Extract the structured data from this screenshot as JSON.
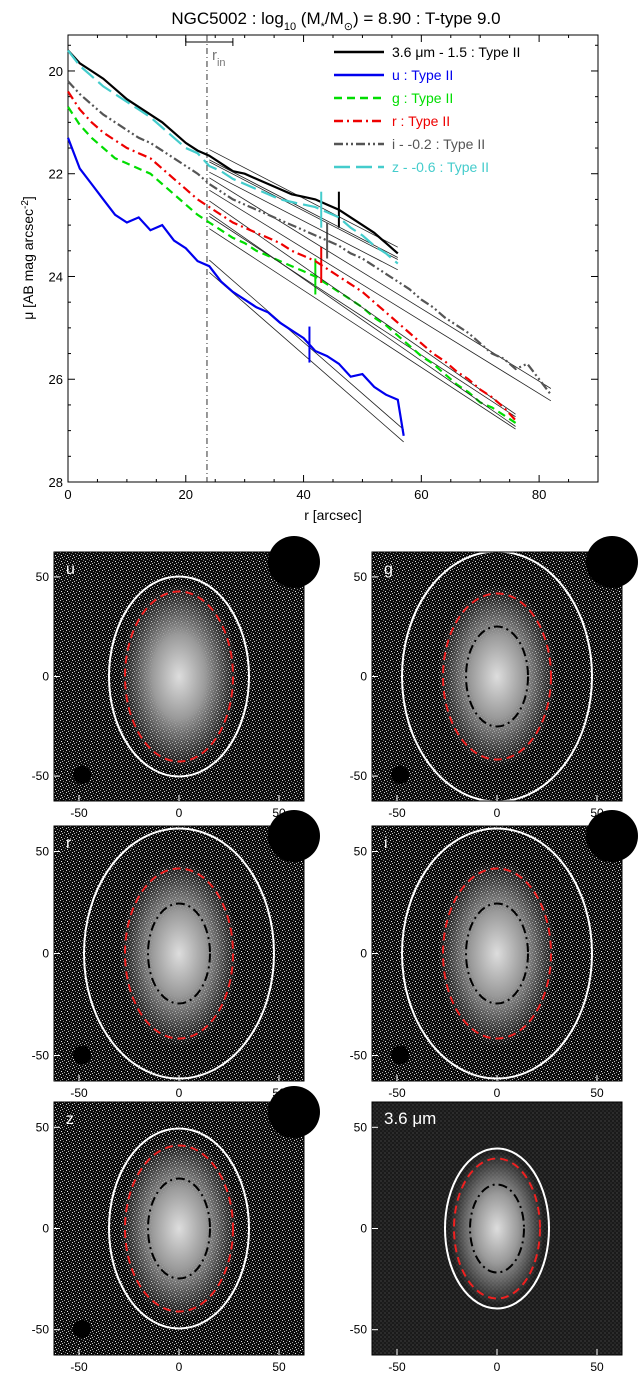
{
  "chart_data": {
    "type": "line",
    "title_parts": [
      "NGC5002 : log",
      "10",
      " (M",
      "*",
      "/M",
      "⊙",
      ") = 8.90 : T-type 9.0"
    ],
    "xlabel": "r [arcsec]",
    "ylabel_parts": [
      "μ [AB mag arcsec",
      "-2",
      "]"
    ],
    "xlim": [
      0,
      90
    ],
    "ylim": [
      28,
      19.3
    ],
    "y_inverted": true,
    "x_ticks": [
      "0",
      "20",
      "40",
      "60",
      "80"
    ],
    "y_ticks": [
      "20",
      "22",
      "24",
      "26",
      "28"
    ],
    "legend_position": "top-right",
    "r_in": {
      "label_main": "r",
      "label_sub": "in",
      "value": 23.6,
      "err": [
        20,
        28
      ]
    },
    "series": [
      {
        "name": "3.6 μm - 1.5 : Type II",
        "color": "#000000",
        "dash": "solid",
        "x": [
          0,
          2,
          4,
          6,
          8,
          10,
          12,
          14,
          16,
          18,
          20,
          22,
          24,
          26,
          28,
          30,
          32,
          34,
          36,
          38,
          40,
          42,
          44,
          46,
          48,
          50,
          52,
          54,
          56
        ],
        "y": [
          19.6,
          19.85,
          20.0,
          20.15,
          20.35,
          20.55,
          20.7,
          20.85,
          21.0,
          21.2,
          21.4,
          21.55,
          21.65,
          21.8,
          21.95,
          22.0,
          22.1,
          22.2,
          22.3,
          22.4,
          22.45,
          22.5,
          22.6,
          22.7,
          22.85,
          23.0,
          23.15,
          23.35,
          23.55
        ],
        "break_x": 46
      },
      {
        "name": "u : Type II",
        "color": "#0000ee",
        "dash": "solid",
        "x": [
          0,
          2,
          4,
          6,
          8,
          10,
          12,
          14,
          16,
          18,
          20,
          22,
          24,
          26,
          28,
          30,
          32,
          34,
          36,
          38,
          40,
          42,
          44,
          46,
          48,
          50,
          52,
          54,
          56,
          57
        ],
        "y": [
          21.3,
          21.9,
          22.2,
          22.5,
          22.8,
          22.95,
          22.85,
          23.1,
          23.0,
          23.3,
          23.45,
          23.7,
          23.8,
          24.1,
          24.3,
          24.45,
          24.6,
          24.7,
          24.9,
          25.05,
          25.2,
          25.45,
          25.55,
          25.7,
          25.95,
          25.9,
          26.15,
          26.3,
          26.4,
          27.1
        ],
        "break_x": 41
      },
      {
        "name": "g : Type II",
        "color": "#00dd00",
        "dash": "dash",
        "x": [
          0,
          2,
          4,
          6,
          8,
          10,
          12,
          14,
          16,
          18,
          20,
          22,
          24,
          26,
          28,
          30,
          32,
          34,
          36,
          38,
          40,
          42,
          44,
          46,
          48,
          50,
          52,
          54,
          56,
          58,
          60,
          62,
          64,
          66,
          68,
          70,
          72,
          74,
          76
        ],
        "y": [
          20.7,
          21.05,
          21.3,
          21.5,
          21.7,
          21.8,
          21.9,
          22.0,
          22.2,
          22.4,
          22.6,
          22.8,
          22.95,
          23.1,
          23.25,
          23.35,
          23.5,
          23.6,
          23.7,
          23.8,
          23.9,
          24.0,
          24.15,
          24.3,
          24.45,
          24.6,
          24.8,
          24.95,
          25.15,
          25.35,
          25.55,
          25.7,
          25.9,
          26.1,
          26.25,
          26.45,
          26.55,
          26.7,
          26.85
        ],
        "break_x": 42
      },
      {
        "name": "r : Type II",
        "color": "#ee0000",
        "dash": "dashdot",
        "x": [
          0,
          2,
          4,
          6,
          8,
          10,
          12,
          14,
          16,
          18,
          20,
          22,
          24,
          26,
          28,
          30,
          32,
          34,
          36,
          38,
          40,
          42,
          44,
          46,
          48,
          50,
          52,
          54,
          56,
          58,
          60,
          62,
          64,
          66,
          68,
          70,
          72,
          74,
          76
        ],
        "y": [
          20.4,
          20.75,
          21.0,
          21.2,
          21.35,
          21.5,
          21.6,
          21.7,
          21.9,
          22.1,
          22.3,
          22.5,
          22.65,
          22.8,
          22.95,
          23.05,
          23.15,
          23.25,
          23.35,
          23.5,
          23.6,
          23.7,
          23.85,
          24.0,
          24.15,
          24.3,
          24.5,
          24.7,
          24.9,
          25.1,
          25.3,
          25.5,
          25.65,
          25.85,
          26.0,
          26.2,
          26.35,
          26.55,
          26.8
        ],
        "break_x": 43
      },
      {
        "name": "i - -0.2 : Type II",
        "color": "#555555",
        "dash": "dashdotdot",
        "x": [
          0,
          2,
          4,
          6,
          8,
          10,
          12,
          14,
          16,
          18,
          20,
          22,
          24,
          26,
          28,
          30,
          32,
          34,
          36,
          38,
          40,
          42,
          44,
          46,
          48,
          50,
          52,
          54,
          56,
          58,
          60,
          62,
          64,
          66,
          68,
          70,
          72,
          74,
          76,
          78,
          80,
          82
        ],
        "y": [
          20.2,
          20.45,
          20.65,
          20.85,
          21.0,
          21.15,
          21.3,
          21.4,
          21.55,
          21.7,
          21.85,
          22.0,
          22.2,
          22.35,
          22.5,
          22.6,
          22.7,
          22.8,
          22.9,
          23.0,
          23.1,
          23.2,
          23.3,
          23.4,
          23.55,
          23.65,
          23.8,
          23.95,
          24.1,
          24.25,
          24.45,
          24.6,
          24.8,
          24.95,
          25.1,
          25.3,
          25.5,
          25.6,
          25.8,
          25.7,
          26.0,
          26.3
        ],
        "break_x": 44
      },
      {
        "name": "z - -0.6 : Type II",
        "color": "#44cccc",
        "dash": "longdash",
        "x": [
          0,
          2,
          4,
          6,
          8,
          10,
          12,
          14,
          16,
          18,
          20,
          22,
          24,
          26,
          28,
          30,
          32,
          34,
          36,
          38,
          40,
          42,
          44,
          46,
          48,
          50,
          52,
          54,
          56
        ],
        "y": [
          19.6,
          19.9,
          20.1,
          20.3,
          20.45,
          20.6,
          20.75,
          20.9,
          21.1,
          21.3,
          21.5,
          21.6,
          21.85,
          21.95,
          22.1,
          22.2,
          22.3,
          22.4,
          22.5,
          22.55,
          22.6,
          22.65,
          22.75,
          22.85,
          23.05,
          23.2,
          23.4,
          23.55,
          23.75
        ],
        "break_x": 43
      }
    ],
    "image_panels": [
      {
        "label": "u",
        "x_ticks": [
          "-50",
          "0",
          "50"
        ],
        "y_ticks": [
          "50",
          "0",
          "-50"
        ]
      },
      {
        "label": "g",
        "x_ticks": [
          "-50",
          "0",
          "50"
        ],
        "y_ticks": [
          "50",
          "0",
          "-50"
        ]
      },
      {
        "label": "r",
        "x_ticks": [
          "-50",
          "0",
          "50"
        ],
        "y_ticks": [
          "50",
          "0",
          "-50"
        ]
      },
      {
        "label": "i",
        "x_ticks": [
          "-50",
          "0",
          "50"
        ],
        "y_ticks": [
          "50",
          "0",
          "-50"
        ]
      },
      {
        "label": "z",
        "x_ticks": [
          "-50",
          "0",
          "50"
        ],
        "y_ticks": [
          "50",
          "0",
          "-50"
        ]
      },
      {
        "label": "3.6 μm",
        "x_ticks": [
          "-50",
          "0",
          "50"
        ],
        "y_ticks": [
          "50",
          "0",
          "-50"
        ]
      }
    ]
  }
}
